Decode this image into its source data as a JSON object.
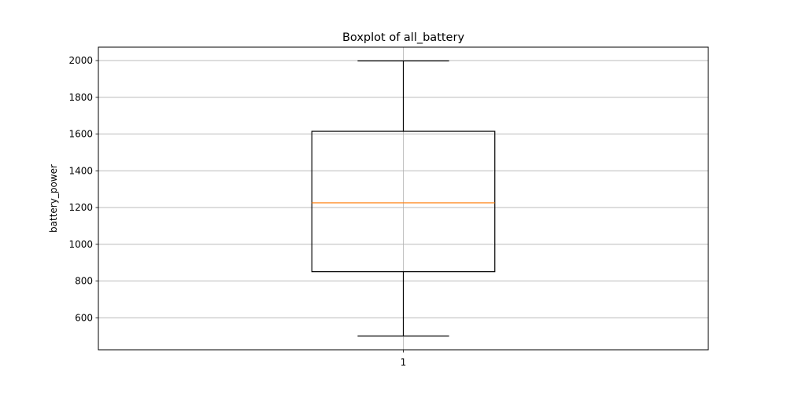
{
  "chart_data": {
    "type": "boxplot",
    "title": "Boxplot of all_battery",
    "xlabel": "",
    "ylabel": "battery_power",
    "categories": [
      "1"
    ],
    "series": [
      {
        "whisker_low": 501,
        "q1": 851,
        "median": 1226,
        "q3": 1615,
        "whisker_high": 1998
      }
    ],
    "yticks": [
      600,
      800,
      1000,
      1200,
      1400,
      1600,
      1800,
      2000
    ],
    "ylim": [
      426,
      2073
    ],
    "grid": true,
    "colors": {
      "box": "#000000",
      "median": "#ff7f0e",
      "grid": "#b0b0b0"
    }
  }
}
